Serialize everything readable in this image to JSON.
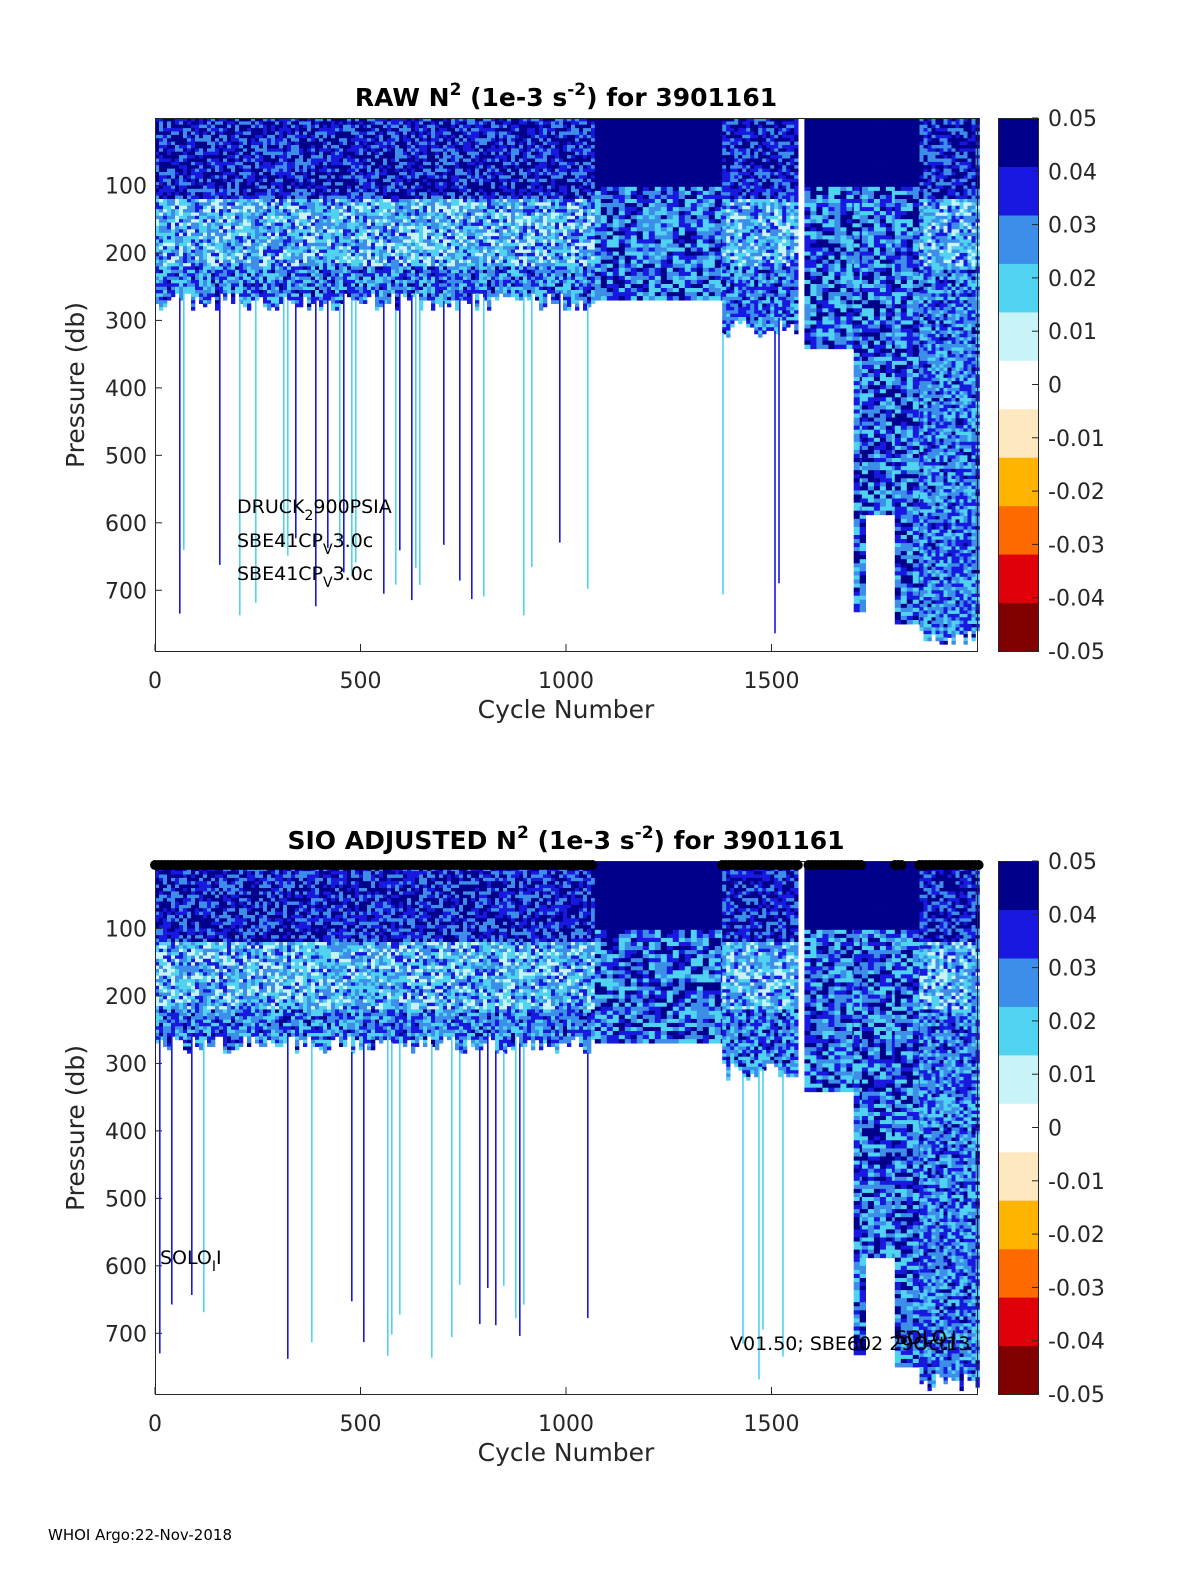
{
  "footer": "WHOI Argo:22-Nov-2018",
  "chart_data": [
    {
      "type": "heatmap",
      "title_parts": [
        "RAW N",
        "2",
        " (1e-3 s",
        "-2",
        ") for 3901161"
      ],
      "xlabel": "Cycle Number",
      "ylabel": "Pressure (db)",
      "xlim": [
        0,
        2000
      ],
      "ylim": [
        0,
        790
      ],
      "y_reversed": true,
      "xticks": [
        "0",
        "500",
        "1000",
        "1500"
      ],
      "xtick_values": [
        0,
        500,
        1000,
        1500
      ],
      "yticks": [
        "100",
        "200",
        "300",
        "400",
        "500",
        "600",
        "700"
      ],
      "ytick_values": [
        100,
        200,
        300,
        400,
        500,
        600,
        700
      ],
      "colorbar": {
        "ticks": [
          "0.05",
          "0.04",
          "0.03",
          "0.02",
          "0.01",
          "0",
          "-0.01",
          "-0.02",
          "-0.03",
          "-0.04",
          "-0.05"
        ],
        "range": [
          -0.05,
          0.05
        ],
        "colormap": [
          "#800000",
          "#e0000a",
          "#ff6a00",
          "#ffb400",
          "#fde8c0",
          "#ffffff",
          "#c8f4f8",
          "#4fd3f0",
          "#3c8ee8",
          "#1818e0",
          "#00008a"
        ]
      },
      "annotations": [
        {
          "text": "DRUCK",
          "sub": "2",
          "rest": "900PSIA"
        },
        {
          "text": "SBE41CP",
          "sub": "V",
          "rest": "3.0c"
        },
        {
          "text": "SBE41CP",
          "sub": "V",
          "rest": "3.0c"
        }
      ],
      "coverage": [
        {
          "x0": 0,
          "x1": 1070,
          "dense_to": 270,
          "sparse_to": 740,
          "style": "noisy"
        },
        {
          "x0": 1070,
          "x1": 1380,
          "dense_to": 265,
          "sparse_to": 265,
          "style": "banded"
        },
        {
          "x0": 1380,
          "x1": 1560,
          "dense_to": 310,
          "sparse_to": 780,
          "style": "noisy"
        },
        {
          "x0": 1560,
          "x1": 1580,
          "dense_to": 0,
          "sparse_to": 0,
          "style": "gap"
        },
        {
          "x0": 1580,
          "x1": 1700,
          "dense_to": 340,
          "sparse_to": 340,
          "style": "banded"
        },
        {
          "x0": 1700,
          "x1": 1720,
          "dense_to": 730,
          "sparse_to": 730,
          "style": "banded"
        },
        {
          "x0": 1720,
          "x1": 1800,
          "dense_to": 585,
          "sparse_to": 585,
          "style": "banded"
        },
        {
          "x0": 1800,
          "x1": 1860,
          "dense_to": 750,
          "sparse_to": 750,
          "style": "banded"
        },
        {
          "x0": 1860,
          "x1": 2000,
          "dense_to": 770,
          "sparse_to": 770,
          "style": "noisy"
        }
      ]
    },
    {
      "type": "heatmap",
      "title_parts": [
        "SIO  ADJUSTED N",
        "2",
        " (1e-3 s",
        "-2",
        ") for 3901161"
      ],
      "xlabel": "Cycle Number",
      "ylabel": "Pressure (db)",
      "xlim": [
        0,
        2000
      ],
      "ylim": [
        0,
        790
      ],
      "y_reversed": true,
      "xticks": [
        "0",
        "500",
        "1000",
        "1500"
      ],
      "xtick_values": [
        0,
        500,
        1000,
        1500
      ],
      "yticks": [
        "100",
        "200",
        "300",
        "400",
        "500",
        "600",
        "700"
      ],
      "ytick_values": [
        100,
        200,
        300,
        400,
        500,
        600,
        700
      ],
      "colorbar": {
        "ticks": [
          "0.05",
          "0.04",
          "0.03",
          "0.02",
          "0.01",
          "0",
          "-0.01",
          "-0.02",
          "-0.03",
          "-0.04",
          "-0.05"
        ],
        "range": [
          -0.05,
          0.05
        ],
        "colormap": [
          "#800000",
          "#e0000a",
          "#ff6a00",
          "#ffb400",
          "#fde8c0",
          "#ffffff",
          "#c8f4f8",
          "#4fd3f0",
          "#3c8ee8",
          "#1818e0",
          "#00008a"
        ]
      },
      "annotations": [
        {
          "text": "SOLO",
          "sub": "I",
          "rest": "I"
        },
        {
          "text": "V01.50; SBE602 29Oct13",
          "sub": "",
          "rest": ""
        },
        {
          "text": "SOLO",
          "sub": "I",
          "rest": "I"
        }
      ],
      "qc_marker_ranges": [
        [
          0,
          1070
        ],
        [
          1380,
          1570
        ],
        [
          1590,
          1720
        ],
        [
          1800,
          1820
        ],
        [
          1860,
          2010
        ]
      ],
      "coverage": [
        {
          "x0": 0,
          "x1": 1070,
          "dense_to": 270,
          "sparse_to": 740,
          "style": "noisy"
        },
        {
          "x0": 1070,
          "x1": 1380,
          "dense_to": 265,
          "sparse_to": 265,
          "style": "banded"
        },
        {
          "x0": 1380,
          "x1": 1560,
          "dense_to": 310,
          "sparse_to": 780,
          "style": "noisy"
        },
        {
          "x0": 1560,
          "x1": 1580,
          "dense_to": 0,
          "sparse_to": 0,
          "style": "gap"
        },
        {
          "x0": 1580,
          "x1": 1700,
          "dense_to": 340,
          "sparse_to": 340,
          "style": "banded"
        },
        {
          "x0": 1700,
          "x1": 1720,
          "dense_to": 730,
          "sparse_to": 730,
          "style": "banded"
        },
        {
          "x0": 1720,
          "x1": 1800,
          "dense_to": 585,
          "sparse_to": 585,
          "style": "banded"
        },
        {
          "x0": 1800,
          "x1": 1860,
          "dense_to": 750,
          "sparse_to": 750,
          "style": "banded"
        },
        {
          "x0": 1860,
          "x1": 2000,
          "dense_to": 770,
          "sparse_to": 770,
          "style": "noisy"
        }
      ]
    }
  ]
}
